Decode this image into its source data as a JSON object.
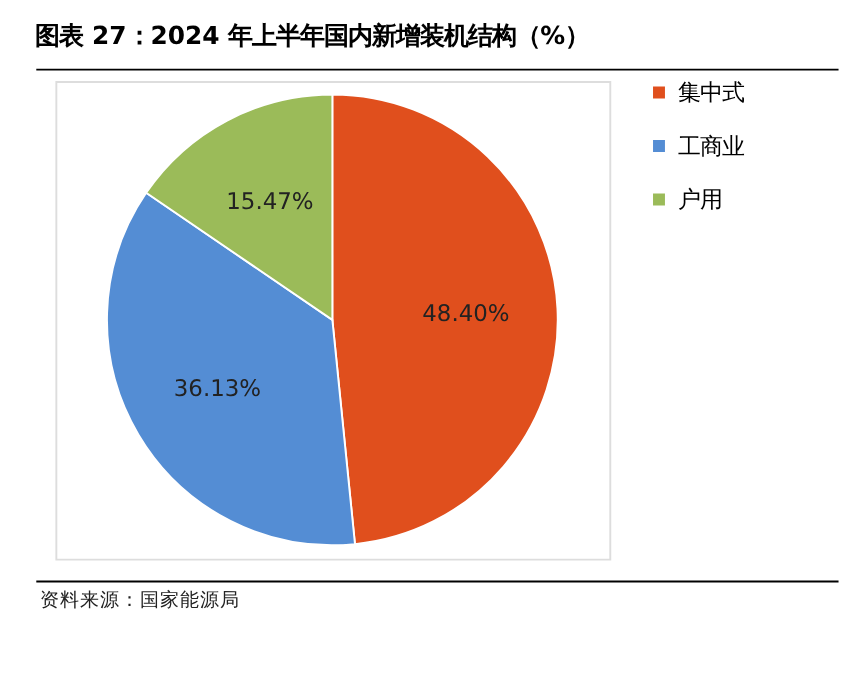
{
  "chart_data": {
    "type": "pie",
    "title": "图表 27：2024 年上半年国内新增装机结构（%）",
    "categories": [
      "集中式",
      "工商业",
      "户用"
    ],
    "values": [
      48.4,
      36.13,
      15.47
    ],
    "colors": [
      "#e04f1d",
      "#548dd4",
      "#9bbb59"
    ],
    "value_labels": [
      "48.40%",
      "36.13%",
      "15.47%"
    ],
    "legend": "right",
    "annotations": [
      "资料来源：国家能源局"
    ]
  }
}
